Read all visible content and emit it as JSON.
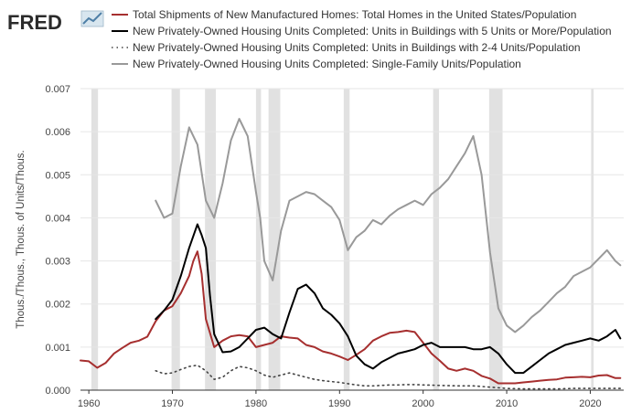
{
  "brand": {
    "logo_text": "FRED"
  },
  "chart_data": {
    "type": "line",
    "title": "",
    "xlabel": "",
    "ylabel": "Thous./Thous., Thous. of Units/Thous.",
    "xlim": [
      1959,
      2024
    ],
    "ylim": [
      0,
      0.007
    ],
    "x_ticks": [
      "1960",
      "1970",
      "1980",
      "1990",
      "2000",
      "2010",
      "2020"
    ],
    "y_ticks": [
      "0.000",
      "0.001",
      "0.002",
      "0.003",
      "0.004",
      "0.005",
      "0.006",
      "0.007"
    ],
    "grid": true,
    "legend_position": "top",
    "recessions": [
      [
        1960.3,
        1961.1
      ],
      [
        1969.9,
        1970.9
      ],
      [
        1973.9,
        1975.2
      ],
      [
        1980.0,
        1980.6
      ],
      [
        1981.5,
        1982.9
      ],
      [
        1990.5,
        1991.2
      ],
      [
        2001.2,
        2001.9
      ],
      [
        2007.9,
        2009.5
      ],
      [
        2020.1,
        2020.4
      ]
    ],
    "series": [
      {
        "name": "Total Shipments of New Manufactured Homes: Total Homes in the United States/Population",
        "color": "#a62f2f",
        "style": "solid",
        "x": [
          1959,
          1960,
          1961,
          1962,
          1963,
          1964,
          1965,
          1966,
          1967,
          1968,
          1969,
          1970,
          1971,
          1972,
          1972.5,
          1973,
          1973.5,
          1974,
          1975,
          1976,
          1977,
          1978,
          1979,
          1980,
          1981,
          1982,
          1983,
          1984,
          1985,
          1986,
          1987,
          1988,
          1989,
          1990,
          1991,
          1992,
          1993,
          1994,
          1995,
          1996,
          1997,
          1998,
          1999,
          2000,
          2001,
          2002,
          2003,
          2004,
          2005,
          2006,
          2007,
          2008,
          2009,
          2010,
          2011,
          2012,
          2013,
          2014,
          2015,
          2016,
          2017,
          2018,
          2019,
          2020,
          2021,
          2022,
          2023,
          2023.6
        ],
        "y": [
          0.00069,
          0.00067,
          0.00052,
          0.00063,
          0.00085,
          0.00098,
          0.0011,
          0.00115,
          0.00124,
          0.0016,
          0.00185,
          0.00195,
          0.00225,
          0.00265,
          0.003,
          0.00322,
          0.0027,
          0.00165,
          0.001,
          0.00115,
          0.00125,
          0.00128,
          0.00125,
          0.001,
          0.00105,
          0.0011,
          0.00125,
          0.00122,
          0.0012,
          0.00105,
          0.001,
          0.0009,
          0.00085,
          0.00078,
          0.0007,
          0.00082,
          0.00095,
          0.00115,
          0.00125,
          0.00133,
          0.00135,
          0.00138,
          0.00135,
          0.0011,
          0.00085,
          0.00068,
          0.0005,
          0.00045,
          0.0005,
          0.00045,
          0.00033,
          0.00027,
          0.00016,
          0.00016,
          0.00016,
          0.00018,
          0.0002,
          0.00022,
          0.00024,
          0.00025,
          0.00029,
          0.0003,
          0.00031,
          0.0003,
          0.00034,
          0.00035,
          0.00028,
          0.00028
        ]
      },
      {
        "name": "New Privately-Owned Housing Units Completed: Units in Buildings with 5 Units or More/Population",
        "color": "#000000",
        "style": "solid",
        "x": [
          1968,
          1969,
          1970,
          1971,
          1972,
          1973,
          1973.5,
          1974,
          1974.5,
          1975,
          1976,
          1977,
          1978,
          1979,
          1980,
          1981,
          1982,
          1983,
          1984,
          1985,
          1986,
          1987,
          1988,
          1989,
          1990,
          1991,
          1992,
          1993,
          1994,
          1995,
          1996,
          1997,
          1998,
          1999,
          2000,
          2001,
          2002,
          2003,
          2004,
          2005,
          2006,
          2007,
          2008,
          2009,
          2010,
          2011,
          2012,
          2013,
          2014,
          2015,
          2016,
          2017,
          2018,
          2019,
          2020,
          2021,
          2022,
          2023,
          2023.6
        ],
        "y": [
          0.00165,
          0.00185,
          0.0021,
          0.00265,
          0.0033,
          0.00385,
          0.0036,
          0.0033,
          0.0022,
          0.0013,
          0.00088,
          0.0009,
          0.001,
          0.0012,
          0.0014,
          0.00145,
          0.0013,
          0.0012,
          0.0018,
          0.00235,
          0.00245,
          0.00225,
          0.0019,
          0.00175,
          0.00155,
          0.00125,
          0.0008,
          0.0006,
          0.0005,
          0.00065,
          0.00075,
          0.00085,
          0.0009,
          0.00095,
          0.00105,
          0.0011,
          0.001,
          0.001,
          0.001,
          0.001,
          0.00095,
          0.00095,
          0.001,
          0.00085,
          0.0006,
          0.0004,
          0.0004,
          0.00055,
          0.0007,
          0.00085,
          0.00095,
          0.00105,
          0.0011,
          0.00115,
          0.0012,
          0.00115,
          0.00125,
          0.0014,
          0.0012
        ]
      },
      {
        "name": "New Privately-Owned Housing Units Completed: Units in Buildings with 2-4 Units/Population",
        "color": "#444444",
        "style": "dotted",
        "x": [
          1968,
          1969,
          1970,
          1971,
          1972,
          1973,
          1974,
          1975,
          1976,
          1977,
          1978,
          1979,
          1980,
          1981,
          1982,
          1983,
          1984,
          1985,
          1986,
          1987,
          1988,
          1989,
          1990,
          1991,
          1992,
          1993,
          1994,
          1995,
          1996,
          1997,
          1998,
          1999,
          2000,
          2002,
          2004,
          2006,
          2008,
          2010,
          2012,
          2014,
          2016,
          2018,
          2020,
          2022,
          2023.6
        ],
        "y": [
          0.00045,
          0.00038,
          0.0004,
          0.00048,
          0.00055,
          0.00058,
          0.00045,
          0.00025,
          0.0003,
          0.00045,
          0.00055,
          0.00052,
          0.00045,
          0.00035,
          0.0003,
          0.00035,
          0.0004,
          0.00035,
          0.0003,
          0.00025,
          0.00022,
          0.0002,
          0.00018,
          0.00015,
          0.00012,
          0.0001,
          0.0001,
          0.00011,
          0.00012,
          0.00012,
          0.00013,
          0.00013,
          0.00012,
          0.00011,
          0.0001,
          0.0001,
          7e-05,
          4e-05,
          3e-05,
          3e-05,
          3e-05,
          4e-05,
          4e-05,
          4e-05,
          4e-05
        ]
      },
      {
        "name": "New Privately-Owned Housing Units Completed: Single-Family Units/Population",
        "color": "#999999",
        "style": "solid",
        "x": [
          1968,
          1968.5,
          1969,
          1970,
          1971,
          1972,
          1973,
          1974,
          1975,
          1976,
          1977,
          1978,
          1979,
          1980,
          1980.5,
          1981,
          1982,
          1983,
          1984,
          1985,
          1986,
          1987,
          1988,
          1989,
          1990,
          1991,
          1992,
          1993,
          1994,
          1995,
          1996,
          1997,
          1998,
          1999,
          2000,
          2001,
          2002,
          2003,
          2004,
          2005,
          2006,
          2007,
          2008,
          2009,
          2010,
          2011,
          2012,
          2013,
          2014,
          2015,
          2016,
          2017,
          2018,
          2019,
          2020,
          2021,
          2022,
          2023,
          2023.6
        ],
        "y": [
          0.0044,
          0.0042,
          0.004,
          0.0041,
          0.0052,
          0.0061,
          0.0057,
          0.0044,
          0.004,
          0.0048,
          0.0058,
          0.0063,
          0.0059,
          0.0046,
          0.004,
          0.003,
          0.00255,
          0.0037,
          0.0044,
          0.0045,
          0.0046,
          0.00455,
          0.0044,
          0.00425,
          0.00395,
          0.00325,
          0.00355,
          0.0037,
          0.00395,
          0.00385,
          0.00405,
          0.0042,
          0.0043,
          0.0044,
          0.0043,
          0.00455,
          0.0047,
          0.0049,
          0.0052,
          0.0055,
          0.0059,
          0.005,
          0.0032,
          0.0019,
          0.0015,
          0.00135,
          0.0015,
          0.0017,
          0.00185,
          0.00205,
          0.00225,
          0.0024,
          0.00265,
          0.00275,
          0.00285,
          0.00305,
          0.00325,
          0.003,
          0.0029
        ]
      }
    ]
  }
}
